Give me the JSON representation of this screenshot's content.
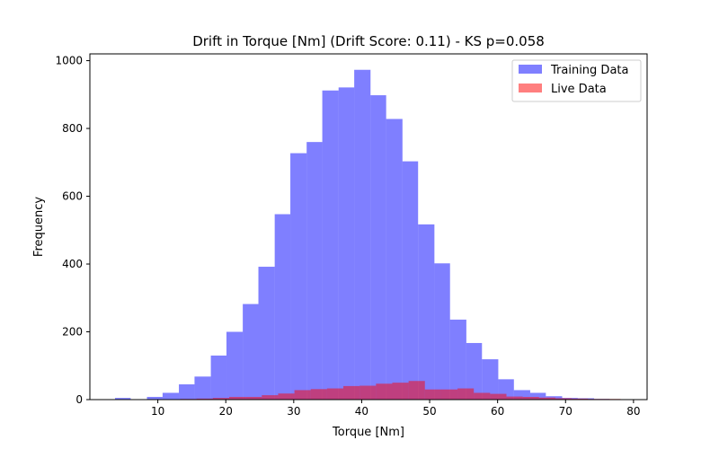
{
  "chart_data": {
    "type": "histogram",
    "title": "Drift in Torque [Nm] (Drift Score: 0.11) - KS p=0.058",
    "xlabel": "Torque [Nm]",
    "ylabel": "Frequency",
    "xlim": [
      0,
      82
    ],
    "ylim": [
      0,
      1020
    ],
    "xticks": [
      10,
      20,
      30,
      40,
      50,
      60,
      70,
      80
    ],
    "yticks": [
      0,
      200,
      400,
      600,
      800,
      1000
    ],
    "grid": false,
    "legend_position": "top-right",
    "series": [
      {
        "name": "Training Data",
        "color": "#0000ff",
        "opacity": 0.5,
        "bin_edges": [
          3.7,
          6.0,
          8.4,
          10.7,
          13.1,
          15.4,
          17.8,
          20.1,
          22.5,
          24.8,
          27.2,
          29.5,
          31.9,
          34.2,
          36.6,
          38.9,
          41.3,
          43.6,
          46.0,
          48.3,
          50.7,
          53.0,
          55.4,
          57.7,
          60.1,
          62.4,
          64.8,
          67.1,
          69.5,
          71.8,
          74.2,
          76.5
        ],
        "values": [
          5,
          1,
          8,
          20,
          45,
          68,
          130,
          200,
          282,
          392,
          547,
          727,
          760,
          912,
          921,
          973,
          898,
          828,
          703,
          517,
          402,
          236,
          167,
          119,
          60,
          28,
          20,
          10,
          5,
          4,
          2
        ]
      },
      {
        "name": "Live Data",
        "color": "#ff0000",
        "opacity": 0.5,
        "bin_edges": [
          8.5,
          10.9,
          13.3,
          15.7,
          18.1,
          20.5,
          22.9,
          25.3,
          27.7,
          30.1,
          32.5,
          34.9,
          37.3,
          39.7,
          42.1,
          44.5,
          46.9,
          49.3,
          51.7,
          54.1,
          56.5,
          58.9,
          61.3,
          63.7,
          66.1,
          68.5,
          70.9,
          73.3,
          75.7,
          78.1,
          80.5
        ],
        "values": [
          1,
          1,
          2,
          3,
          5,
          8,
          8,
          13,
          18,
          28,
          31,
          33,
          40,
          41,
          47,
          50,
          55,
          30,
          30,
          33,
          20,
          17,
          9,
          8,
          6,
          4,
          3,
          2,
          2,
          1
        ]
      }
    ]
  }
}
